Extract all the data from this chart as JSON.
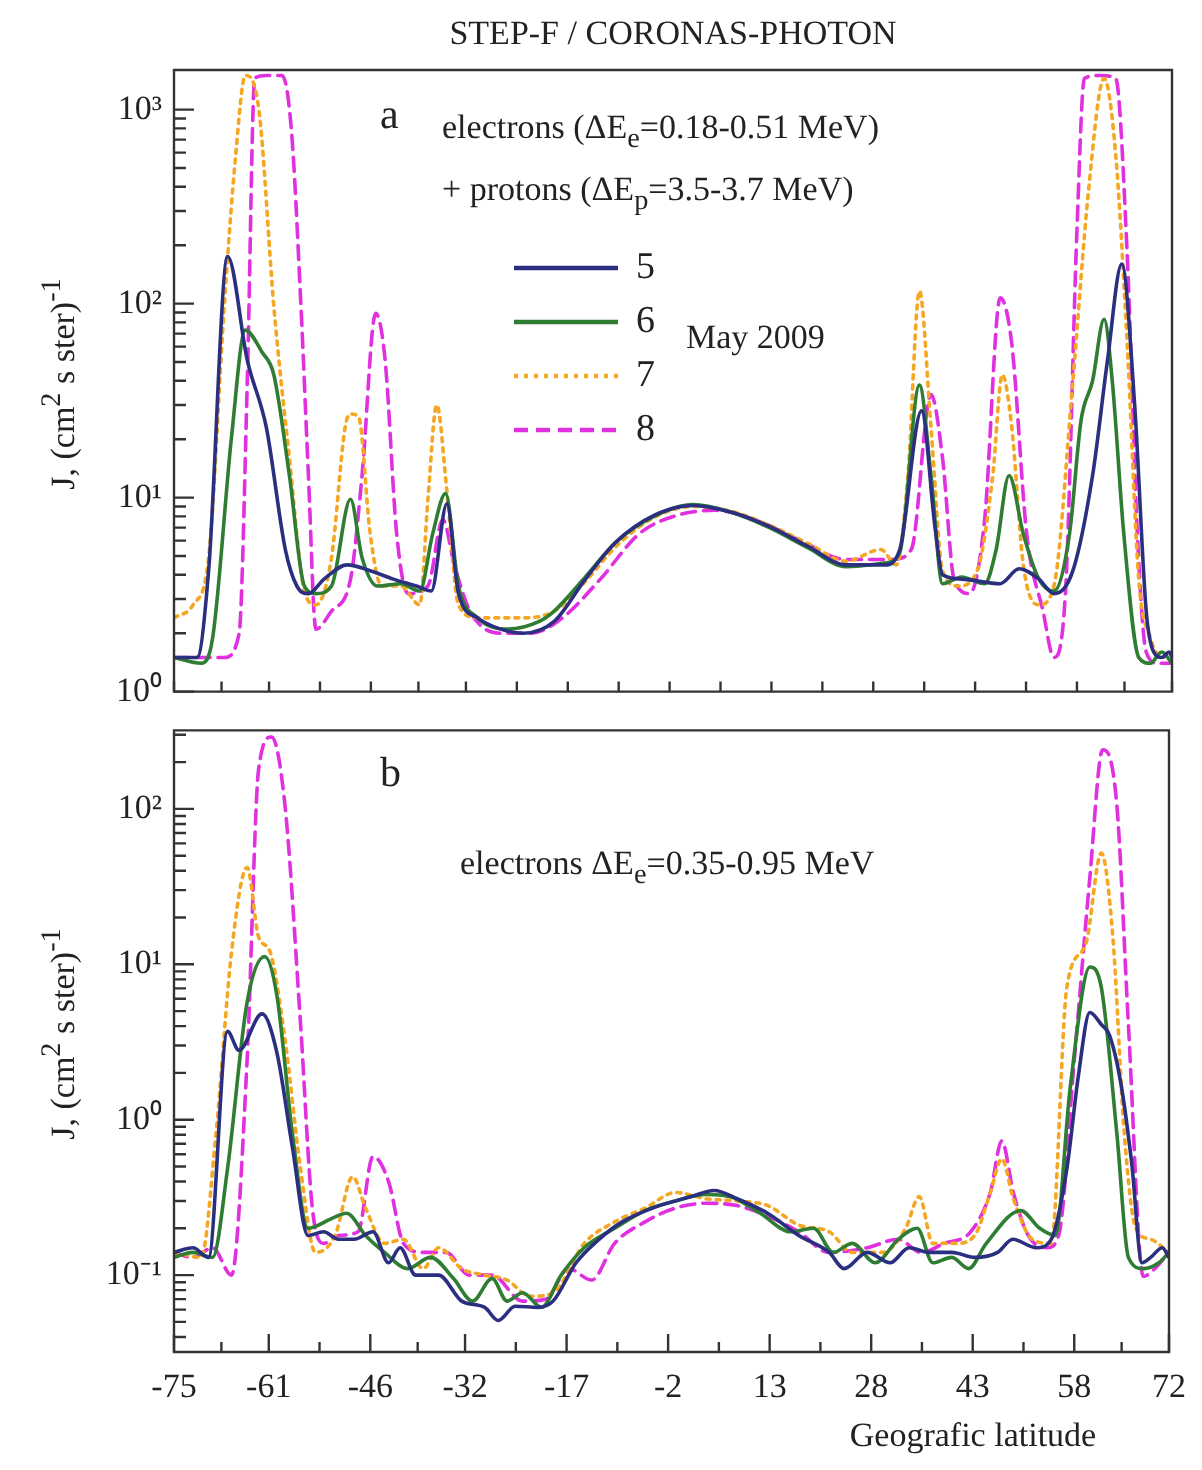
{
  "chart_data": [
    {
      "type": "line",
      "title": "STEP-F / CORONAS-PHOTON",
      "ylabel": "J, (cm$^{2}$ s  ster)$^{-1}$",
      "annotations": [
        "a",
        "electrons    (ΔE$_{e}$=0.18-0.51 MeV)",
        "+ protons (ΔE$_{p}$=3.5-3.7 MeV)",
        "May 2009"
      ],
      "log": true,
      "grid": false,
      "legend": "top",
      "tick_labels": "y",
      "marker": "none",
      "xlim": [
        -75,
        72
      ],
      "xticks": [
        {
          "value": -75,
          "label": null
        },
        {
          "value": -68,
          "label": null
        },
        {
          "value": -61,
          "label": null
        },
        {
          "value": -53.5,
          "label": null
        },
        {
          "value": -46,
          "label": null
        },
        {
          "value": -39,
          "label": null
        },
        {
          "value": -32,
          "label": null
        },
        {
          "value": -24.5,
          "label": null
        },
        {
          "value": -17,
          "label": null
        },
        {
          "value": -9.5,
          "label": null
        },
        {
          "value": -2,
          "label": null
        },
        {
          "value": 5.5,
          "label": null
        },
        {
          "value": 13,
          "label": null
        },
        {
          "value": 20.5,
          "label": null
        },
        {
          "value": 28,
          "label": null
        },
        {
          "value": 35.5,
          "label": null
        },
        {
          "value": 43,
          "label": null
        },
        {
          "value": 50.5,
          "label": null
        },
        {
          "value": 58,
          "label": null
        },
        {
          "value": 65,
          "label": null
        },
        {
          "value": 72,
          "label": null
        }
      ],
      "ylim": [
        1,
        1600
      ],
      "yticks": [
        {
          "value": 1,
          "label": "10⁰"
        },
        {
          "value": 2,
          "label": null
        },
        {
          "value": 3,
          "label": null
        },
        {
          "value": 4,
          "label": null
        },
        {
          "value": 5,
          "label": null
        },
        {
          "value": 6,
          "label": null
        },
        {
          "value": 7,
          "label": null
        },
        {
          "value": 8,
          "label": null
        },
        {
          "value": 9,
          "label": null
        },
        {
          "value": 10,
          "label": "10¹"
        },
        {
          "value": 20,
          "label": null
        },
        {
          "value": 30,
          "label": null
        },
        {
          "value": 40,
          "label": null
        },
        {
          "value": 50,
          "label": null
        },
        {
          "value": 60,
          "label": null
        },
        {
          "value": 70,
          "label": null
        },
        {
          "value": 80,
          "label": null
        },
        {
          "value": 90,
          "label": null
        },
        {
          "value": 100,
          "label": "10²"
        },
        {
          "value": 200,
          "label": null
        },
        {
          "value": 300,
          "label": null
        },
        {
          "value": 400,
          "label": null
        },
        {
          "value": 500,
          "label": null
        },
        {
          "value": 600,
          "label": null
        },
        {
          "value": 700,
          "label": null
        },
        {
          "value": 800,
          "label": null
        },
        {
          "value": 900,
          "label": null
        },
        {
          "value": 1000,
          "label": "10³"
        }
      ],
      "series": [
        {
          "name": "5",
          "color": "#2b2f80",
          "line_style": "solid",
          "x": [
            -75,
            -71.6,
            -69.9,
            -67.1,
            -64.2,
            -61.4,
            -58.6,
            -56.9,
            -55.2,
            -52.9,
            -49.5,
            -46.1,
            -42.7,
            -39.3,
            -37.1,
            -34.8,
            -33.1,
            -30.3,
            -26.9,
            -23.5,
            -19.0,
            -14.4,
            -9.9,
            -4.3,
            1.4,
            7.1,
            12.7,
            18.4,
            24.0,
            29.7,
            31.9,
            35.1,
            37.1,
            38.2,
            41.0,
            46.7,
            49.5,
            52.4,
            54.6,
            57.4,
            60.3,
            62.5,
            64.6,
            66.5,
            68.2,
            69.3,
            70.5,
            71.6,
            72
          ],
          "values": [
            1.5,
            1.5,
            4.2,
            175,
            51,
            23,
            5.4,
            3.5,
            3.2,
            3.8,
            4.5,
            4.2,
            3.8,
            3.5,
            3.3,
            9.3,
            3.2,
            2.4,
            2.1,
            2.0,
            2.3,
            3.8,
            5.9,
            8.1,
            9.1,
            8.4,
            7.1,
            5.6,
            4.5,
            4.5,
            5.4,
            28,
            7,
            4.0,
            3.8,
            3.6,
            4.3,
            3.8,
            3.2,
            4.2,
            13,
            51,
            160,
            30,
            2.6,
            1.6,
            1.5,
            1.6,
            1.5
          ]
        },
        {
          "name": "6",
          "color": "#2e7d32",
          "line_style": "solid",
          "x": [
            -75,
            -71.0,
            -69.3,
            -66.5,
            -64.5,
            -62.0,
            -60.3,
            -58.0,
            -55.8,
            -54.1,
            -51.8,
            -49.0,
            -47.3,
            -45.0,
            -41.6,
            -38.8,
            -36.9,
            -35.0,
            -33.1,
            -30.3,
            -25.8,
            -21.2,
            -19.0,
            -14.4,
            -9.9,
            -4.3,
            1.4,
            7.1,
            12.7,
            18.4,
            24.0,
            29.7,
            31.9,
            34.8,
            36.5,
            38.2,
            41.0,
            44.4,
            46.1,
            48.0,
            50.1,
            52.4,
            54.6,
            56.9,
            58.6,
            60.3,
            62.0,
            63.2,
            64.9,
            67.1,
            68.8,
            70.5,
            72
          ],
          "values": [
            1.5,
            1.4,
            1.9,
            21,
            73,
            56,
            43,
            13,
            3.5,
            3.2,
            3.5,
            9.8,
            4.9,
            3.5,
            3.6,
            3.3,
            6.5,
            10.5,
            3.5,
            2.4,
            2.1,
            2.3,
            2.6,
            3.9,
            5.9,
            8.0,
            9.2,
            8.4,
            7.0,
            5.5,
            4.4,
            4.6,
            5.2,
            38,
            13,
            3.6,
            3.9,
            3.6,
            5.4,
            13,
            6.5,
            3.8,
            3.3,
            6.5,
            25,
            40,
            83,
            40,
            6.5,
            1.5,
            1.4,
            1.6,
            1.4
          ]
        },
        {
          "name": "7",
          "color": "#f5a623",
          "line_style": "dotted",
          "x": [
            -75,
            -72.2,
            -69.9,
            -67.6,
            -65.9,
            -64.5,
            -62.5,
            -60.3,
            -58.0,
            -55.8,
            -54.1,
            -51.8,
            -49.8,
            -49.0,
            -47.8,
            -46.1,
            -44.4,
            -41.6,
            -38.8,
            -37.6,
            -36.3,
            -34.8,
            -33.1,
            -30.3,
            -23.5,
            -19.0,
            -14.4,
            -9.9,
            -4.3,
            1.4,
            7.1,
            12.7,
            18.4,
            24.0,
            29.1,
            31.4,
            33.1,
            34.8,
            36.5,
            38.2,
            40.5,
            43.3,
            45.6,
            47.0,
            48.4,
            50.1,
            52.4,
            54.6,
            57.4,
            59.7,
            62.0,
            63.7,
            65.4,
            67.1,
            68.8,
            70.5,
            72
          ],
          "values": [
            2.4,
            2.8,
            4.9,
            97,
            590,
            1500,
            1000,
            97,
            16,
            3.3,
            2.8,
            4.9,
            23,
            27,
            26,
            6.5,
            3.5,
            3.5,
            2.8,
            9.8,
            30,
            10.8,
            2.8,
            2.4,
            2.4,
            2.6,
            3.7,
            5.6,
            7.9,
            9.0,
            8.5,
            7.2,
            5.8,
            4.7,
            5.4,
            4.5,
            13,
            116,
            23,
            4.2,
            3.5,
            4.2,
            13,
            43,
            23,
            4.5,
            2.8,
            3.5,
            40,
            380,
            1450,
            590,
            62,
            3.8,
            1.9,
            1.5,
            1.6
          ]
        },
        {
          "name": "8",
          "color": "#e030e0",
          "line_style": "dashed",
          "x": [
            -75,
            -71.0,
            -67.6,
            -65.4,
            -64.2,
            -63.1,
            -61.4,
            -59.1,
            -57.7,
            -56.3,
            -55.2,
            -54.1,
            -51.8,
            -49.0,
            -47.3,
            -45.3,
            -43.9,
            -42.2,
            -40.5,
            -37.6,
            -35.4,
            -33.7,
            -31.4,
            -26.9,
            -22.4,
            -17.8,
            -12.2,
            -6.5,
            -0.9,
            4.8,
            10.5,
            17.3,
            24.0,
            30.8,
            33.6,
            36.5,
            38.2,
            39.9,
            42.2,
            44.4,
            46.7,
            48.4,
            50.6,
            53.0,
            54.6,
            56.3,
            58.0,
            59.1,
            61.4,
            63.7,
            65.4,
            66.9,
            68.2,
            69.9,
            72
          ],
          "values": [
            1.5,
            1.5,
            1.5,
            2.0,
            40,
            1450,
            1500,
            1500,
            780,
            97,
            13,
            2.1,
            2.6,
            3.8,
            13,
            89,
            51,
            6.5,
            3.2,
            3.5,
            7.7,
            4.5,
            2.6,
            2.0,
            2.0,
            2.4,
            3.8,
            6.5,
            8.1,
            8.6,
            7.7,
            6.0,
            4.8,
            4.8,
            5.4,
            34,
            16,
            3.8,
            3.2,
            7.7,
            107,
            62,
            6.5,
            2.6,
            1.5,
            3.2,
            240,
            1450,
            1500,
            1450,
            180,
            6.5,
            1.6,
            1.4,
            1.4
          ]
        }
      ]
    },
    {
      "type": "line",
      "xlabel": "Geografic latitude",
      "ylabel": "J, (cm$^{2}$ s  ster)$^{-1}$",
      "annotations": [
        "b",
        "electrons   ΔE$_{e}$=0.35-0.95 MeV"
      ],
      "log": true,
      "grid": false,
      "marker": "none",
      "xlim": [
        -75,
        72
      ],
      "xticks": [
        -75,
        {
          "value": -68,
          "label": null
        },
        -61,
        {
          "value": -53.5,
          "label": null
        },
        -46,
        {
          "value": -39,
          "label": null
        },
        -32,
        {
          "value": -24.5,
          "label": null
        },
        -17,
        {
          "value": -9.5,
          "label": null
        },
        -2,
        {
          "value": 5.5,
          "label": null
        },
        13,
        {
          "value": 20.5,
          "label": null
        },
        28,
        {
          "value": 35.5,
          "label": null
        },
        43,
        {
          "value": 50.5,
          "label": null
        },
        58,
        {
          "value": 65,
          "label": null
        },
        72
      ],
      "ylim": [
        0.032,
        320
      ],
      "yticks": [
        {
          "value": 0.04,
          "label": null
        },
        {
          "value": 0.05,
          "label": null
        },
        {
          "value": 0.06,
          "label": null
        },
        {
          "value": 0.07,
          "label": null
        },
        {
          "value": 0.08,
          "label": null
        },
        {
          "value": 0.09,
          "label": null
        },
        {
          "value": 0.1,
          "label": "10⁻¹"
        },
        {
          "value": 0.2,
          "label": null
        },
        {
          "value": 0.3,
          "label": null
        },
        {
          "value": 0.4,
          "label": null
        },
        {
          "value": 0.5,
          "label": null
        },
        {
          "value": 0.6,
          "label": null
        },
        {
          "value": 0.7,
          "label": null
        },
        {
          "value": 0.8,
          "label": null
        },
        {
          "value": 0.9,
          "label": null
        },
        {
          "value": 1,
          "label": "10⁰"
        },
        {
          "value": 2,
          "label": null
        },
        {
          "value": 3,
          "label": null
        },
        {
          "value": 4,
          "label": null
        },
        {
          "value": 5,
          "label": null
        },
        {
          "value": 6,
          "label": null
        },
        {
          "value": 7,
          "label": null
        },
        {
          "value": 8,
          "label": null
        },
        {
          "value": 9,
          "label": null
        },
        {
          "value": 10,
          "label": "10¹"
        },
        {
          "value": 20,
          "label": null
        },
        {
          "value": 30,
          "label": null
        },
        {
          "value": 40,
          "label": null
        },
        {
          "value": 50,
          "label": null
        },
        {
          "value": 60,
          "label": null
        },
        {
          "value": 70,
          "label": null
        },
        {
          "value": 80,
          "label": null
        },
        {
          "value": 90,
          "label": null
        },
        {
          "value": 100,
          "label": "10²"
        },
        {
          "value": 200,
          "label": null
        },
        {
          "value": 300,
          "label": null
        }
      ],
      "series": [
        {
          "color": "#2b2f80",
          "line_style": "solid",
          "x": [
            -75,
            -72.2,
            -69.9,
            -67.1,
            -65.4,
            -62.0,
            -59.8,
            -57.5,
            -55.2,
            -52.9,
            -50.7,
            -48.4,
            -45.6,
            -43.3,
            -41.6,
            -39.3,
            -35.9,
            -32.5,
            -29.1,
            -27.1,
            -24.6,
            -21.2,
            -19.0,
            -15.6,
            -12.2,
            -8.8,
            -4.3,
            1.4,
            4.8,
            8.2,
            12.7,
            17.3,
            21.8,
            24.0,
            27.4,
            30.8,
            33.6,
            36.5,
            39.9,
            43.3,
            46.7,
            48.9,
            52.4,
            54.6,
            56.9,
            58.6,
            60.3,
            62.0,
            63.2,
            64.9,
            66.5,
            68.0,
            69.3,
            71.0,
            72
          ],
          "values": [
            0.14,
            0.15,
            0.13,
            3.7,
            2.8,
            4.8,
            2.7,
            0.66,
            0.18,
            0.19,
            0.17,
            0.17,
            0.19,
            0.12,
            0.15,
            0.1,
            0.1,
            0.068,
            0.062,
            0.051,
            0.063,
            0.062,
            0.068,
            0.12,
            0.17,
            0.22,
            0.27,
            0.32,
            0.35,
            0.31,
            0.25,
            0.18,
            0.14,
            0.11,
            0.14,
            0.12,
            0.15,
            0.14,
            0.14,
            0.13,
            0.14,
            0.17,
            0.15,
            0.17,
            0.48,
            1.9,
            4.9,
            4.1,
            3.5,
            1.7,
            0.52,
            0.12,
            0.13,
            0.15,
            0.13
          ]
        },
        {
          "color": "#2e7d32",
          "line_style": "solid",
          "x": [
            -75,
            -72.2,
            -69.3,
            -67.1,
            -64.2,
            -61.6,
            -59.8,
            -57.5,
            -55.2,
            -51.8,
            -49.5,
            -46.7,
            -43.9,
            -40.5,
            -37.1,
            -33.7,
            -30.9,
            -28.0,
            -25.8,
            -23.5,
            -20.7,
            -17.8,
            -14.4,
            -9.9,
            -5.4,
            -0.9,
            3.6,
            7.1,
            11.6,
            16.1,
            19.5,
            22.4,
            25.2,
            28.6,
            32.0,
            34.8,
            37.1,
            39.9,
            42.4,
            45.0,
            50.1,
            52.9,
            55.2,
            57.4,
            60.3,
            62.0,
            64.3,
            66.0,
            68.2,
            70.5,
            72
          ],
          "values": [
            0.13,
            0.14,
            0.13,
            0.48,
            5.7,
            11.2,
            6.3,
            0.81,
            0.2,
            0.23,
            0.25,
            0.18,
            0.14,
            0.11,
            0.13,
            0.095,
            0.068,
            0.095,
            0.068,
            0.077,
            0.062,
            0.1,
            0.15,
            0.2,
            0.26,
            0.3,
            0.33,
            0.32,
            0.25,
            0.19,
            0.2,
            0.14,
            0.16,
            0.12,
            0.17,
            0.2,
            0.12,
            0.13,
            0.11,
            0.16,
            0.26,
            0.2,
            0.18,
            1.6,
            9.6,
            7.1,
            0.81,
            0.13,
            0.11,
            0.12,
            0.14
          ]
        },
        {
          "color": "#f5a623",
          "line_style": "dotted",
          "x": [
            -75,
            -71.0,
            -68.8,
            -66.5,
            -64.2,
            -62.5,
            -60.8,
            -58.6,
            -56.3,
            -54.1,
            -51.2,
            -48.6,
            -46.7,
            -43.9,
            -41.1,
            -38.2,
            -35.9,
            -32.5,
            -29.1,
            -25.8,
            -22.4,
            -19.0,
            -14.4,
            -9.9,
            -5.4,
            -0.9,
            3.6,
            8.2,
            12.7,
            17.3,
            21.8,
            25.2,
            29.7,
            33.1,
            35.1,
            37.1,
            40.5,
            43.3,
            45.6,
            47.3,
            49.0,
            51.8,
            54.6,
            56.9,
            59.7,
            62.0,
            63.7,
            65.4,
            67.1,
            69.3,
            72
          ],
          "values": [
            0.14,
            0.13,
            0.81,
            12,
            42,
            15,
            12,
            3.3,
            0.48,
            0.14,
            0.18,
            0.43,
            0.27,
            0.16,
            0.17,
            0.11,
            0.15,
            0.11,
            0.1,
            0.093,
            0.073,
            0.077,
            0.16,
            0.22,
            0.27,
            0.34,
            0.31,
            0.3,
            0.28,
            0.21,
            0.19,
            0.14,
            0.14,
            0.2,
            0.32,
            0.16,
            0.16,
            0.18,
            0.34,
            0.56,
            0.31,
            0.17,
            0.16,
            7.1,
            13.5,
            52,
            15,
            0.81,
            0.2,
            0.17,
            0.14
          ]
        },
        {
          "color": "#e030e0",
          "line_style": "dashed",
          "x": [
            -75,
            -72.2,
            -69.3,
            -66.5,
            -64.2,
            -62.5,
            -60.6,
            -58.6,
            -56.3,
            -54.6,
            -52.9,
            -50.7,
            -47.8,
            -45.6,
            -43.3,
            -41.1,
            -38.2,
            -34.8,
            -31.4,
            -28.0,
            -23.5,
            -20.1,
            -16.7,
            -13.3,
            -9.9,
            -5.4,
            -0.9,
            3.6,
            8.2,
            12.7,
            17.3,
            21.8,
            27.4,
            32.0,
            35.4,
            38.8,
            42.7,
            45.6,
            47.3,
            49.0,
            51.2,
            54.0,
            55.7,
            58.0,
            60.3,
            62.2,
            64.3,
            66.0,
            68.2,
            69.9,
            72
          ],
          "values": [
            0.14,
            0.13,
            0.15,
            0.1,
            2.4,
            180,
            290,
            105,
            4.1,
            0.28,
            0.16,
            0.18,
            0.19,
            0.58,
            0.4,
            0.16,
            0.14,
            0.14,
            0.1,
            0.1,
            0.068,
            0.07,
            0.11,
            0.093,
            0.16,
            0.22,
            0.27,
            0.29,
            0.28,
            0.24,
            0.19,
            0.14,
            0.15,
            0.17,
            0.14,
            0.16,
            0.19,
            0.34,
            0.73,
            0.34,
            0.18,
            0.15,
            0.18,
            2.4,
            36,
            240,
            105,
            4.1,
            0.098,
            0.11,
            0.14
          ]
        }
      ]
    }
  ]
}
